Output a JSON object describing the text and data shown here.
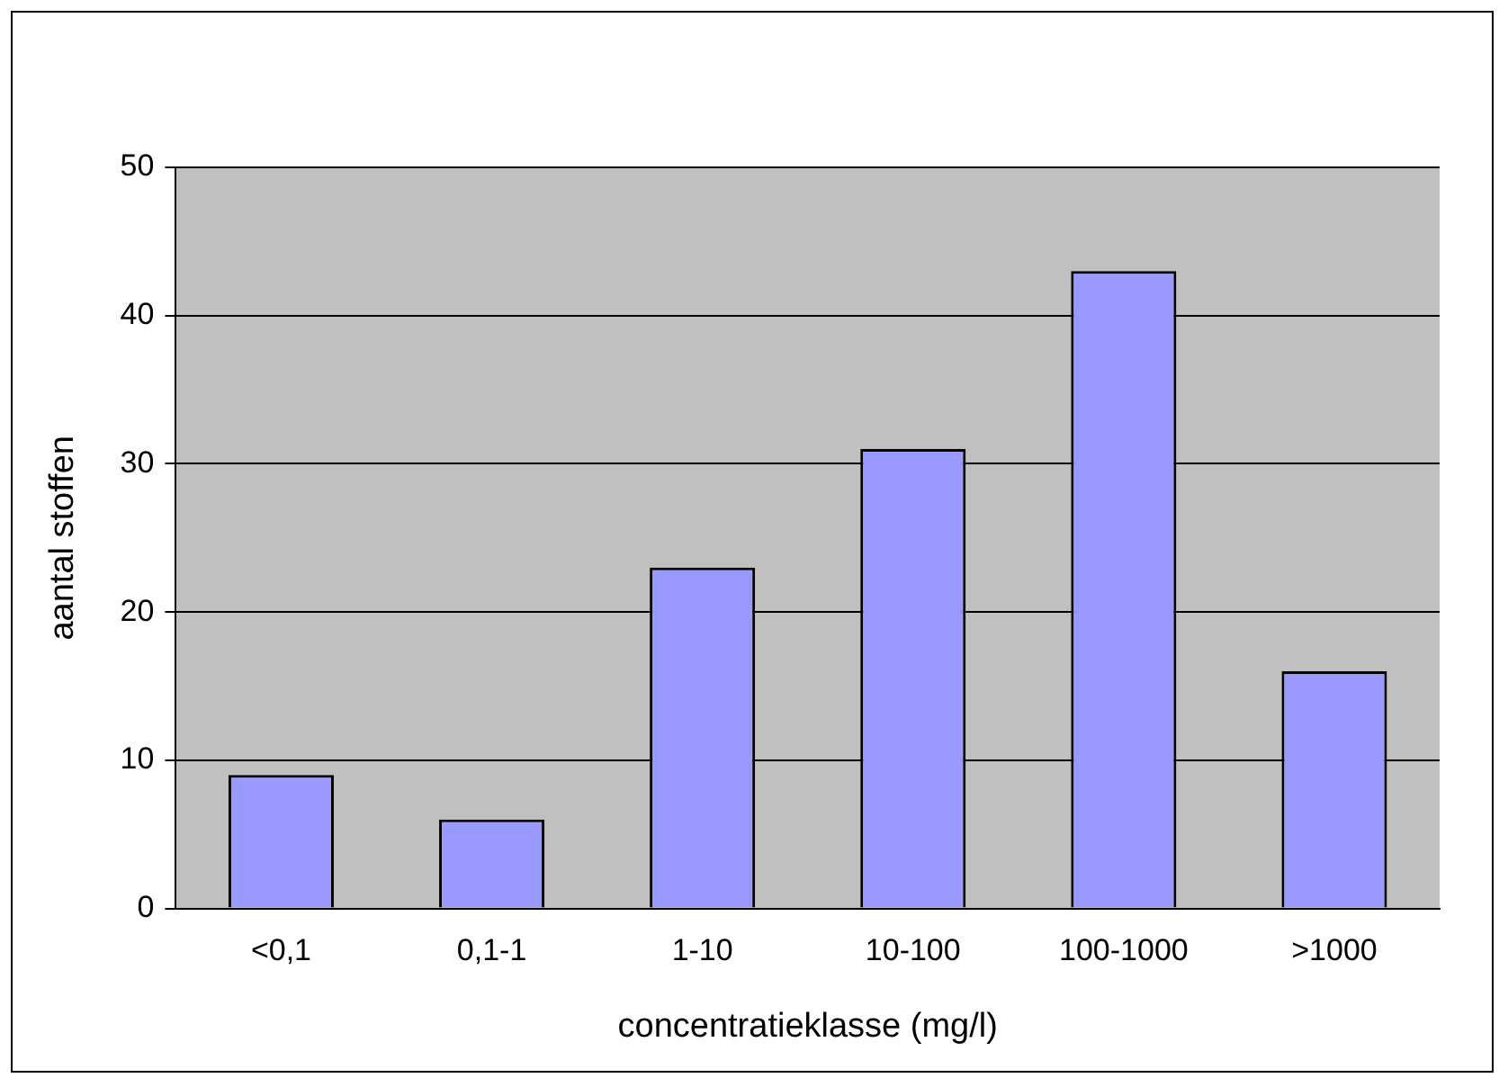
{
  "chart_data": {
    "type": "bar",
    "xlabel": "concentratieklasse (mg/l)",
    "ylabel": "aantal stoffen",
    "categories": [
      "<0,1",
      "0,1-1",
      "1-10",
      "10-100",
      "100-1000",
      ">1000"
    ],
    "values": [
      9,
      6,
      23,
      31,
      43,
      16
    ],
    "color": "#9999ff",
    "ylim": [
      0,
      50
    ],
    "yticks": [
      0,
      10,
      20,
      30,
      40,
      50
    ],
    "grid": "y"
  }
}
